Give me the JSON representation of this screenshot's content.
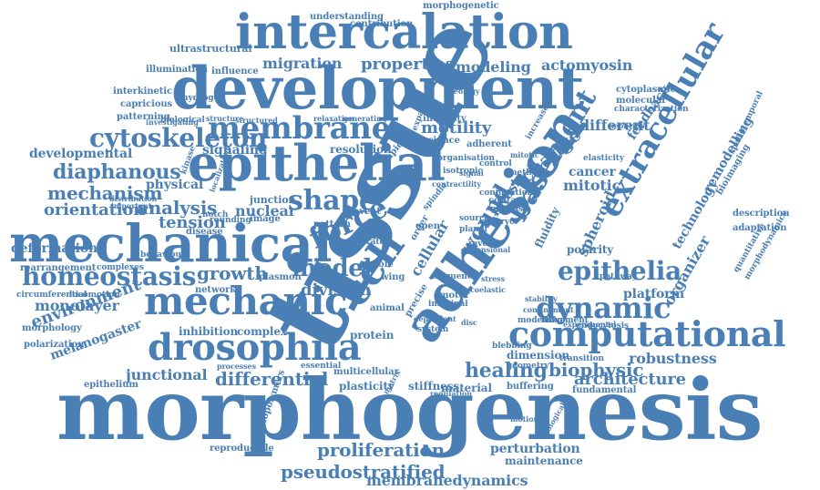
{
  "colors": {
    "word": "#4a7fb5",
    "background": "#ffffff"
  },
  "words": [
    "morphogenesis",
    "tissue",
    "development",
    "mechanical",
    "epithelial",
    "intercalation",
    "adhesion",
    "mechanic",
    "drosophila",
    "cell",
    "computational",
    "membrane",
    "epithelia",
    "dynamic",
    "force",
    "extracellular",
    "basement",
    "cytoskeleton",
    "shape",
    "healing",
    "homeostasis",
    "model",
    "growth",
    "biophysic",
    "diaphanous",
    "proliferation",
    "pseudostratified",
    "differential",
    "mechanism",
    "division",
    "migration",
    "properties",
    "motility",
    "wound",
    "spheroid",
    "membranedynamics",
    "environment",
    "monolayer",
    "analysis",
    "tension",
    "nuclear",
    "signaling",
    "change",
    "different",
    "feedback",
    "orientation",
    "architecture",
    "junctional",
    "melanogaster",
    "platform",
    "robustness",
    "perturbation",
    "organizer",
    "technology",
    "modeling",
    "actomyosin",
    "remodelling",
    "mitotic",
    "cancer",
    "polarity",
    "fluidity",
    "cellular",
    "myosin",
    "developmental",
    "physical",
    "deformation",
    "maintenance",
    "complex",
    "inhibition",
    "protein",
    "stiffness",
    "plasticity",
    "material",
    "dimension",
    "buffering",
    "fundamental",
    "junction",
    "image",
    "disease",
    "network",
    "rearrangement",
    "epithelium",
    "morphology",
    "polarization",
    "reproducible",
    "biopolymers",
    "circumferential",
    "locomotion",
    "complexes",
    "behaviour",
    "ultrastructural",
    "illumination",
    "influence",
    "interkinetic",
    "capricious",
    "hydrogel",
    "patterning",
    "biological",
    "morphogenetic",
    "understanding",
    "contribution",
    "cytoplasmic",
    "molecular",
    "characterization",
    "description",
    "adaptation",
    "spatiotemporal",
    "bioimaging",
    "quantitative",
    "morphodynamics",
    "nephrins",
    "modelling",
    "movement",
    "endocytosis",
    "elasticity",
    "control",
    "system",
    "spindle",
    "motor",
    "apical",
    "rate",
    "planar",
    "source",
    "reveal",
    "role",
    "wing",
    "open",
    "event",
    "pattern",
    "order",
    "notch",
    "rounding",
    "plasmon",
    "animal",
    "precise",
    "contact",
    "mitosis",
    "method",
    "increase",
    "pathway",
    "resolution",
    "science",
    "adherent",
    "integrity",
    "rheology",
    "expansion",
    "structured",
    "relaxation",
    "generating",
    "multicellular",
    "essential",
    "processes",
    "experimental",
    "transition",
    "geometry",
    "structure",
    "biological",
    "conjugation",
    "embryo",
    "frequency",
    "kinase",
    "matrix",
    "blebbing",
    "regulation",
    "organisation",
    "isotropic",
    "imaginal",
    "mitotic",
    "signal",
    "dependent",
    "stress",
    "motion",
    "confinement",
    "viscoelastic",
    "disc",
    "localization",
    "distribution",
    "important",
    "investigating",
    "dimensional",
    "contractility",
    "stability",
    "cellular",
    "heterogeneity"
  ]
}
